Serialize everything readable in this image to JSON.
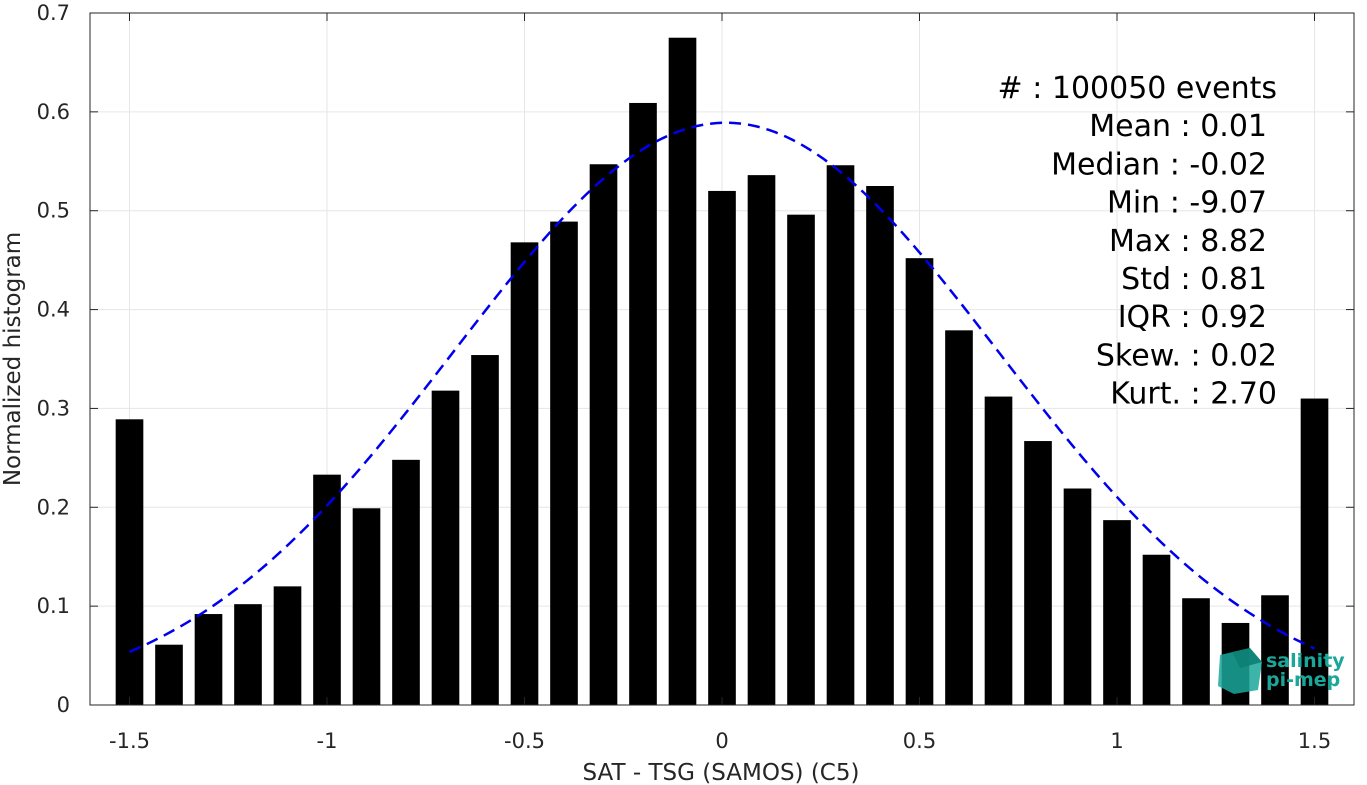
{
  "chart_data": {
    "type": "bar",
    "x": [
      -1.5,
      -1.4,
      -1.3,
      -1.2,
      -1.1,
      -1.0,
      -0.9,
      -0.8,
      -0.7,
      -0.6,
      -0.5,
      -0.4,
      -0.3,
      -0.2,
      -0.1,
      0.0,
      0.1,
      0.2,
      0.3,
      0.4,
      0.5,
      0.6,
      0.7,
      0.8,
      0.9,
      1.0,
      1.1,
      1.2,
      1.3,
      1.4,
      1.5
    ],
    "values": [
      0.289,
      0.061,
      0.092,
      0.102,
      0.12,
      0.233,
      0.199,
      0.248,
      0.318,
      0.354,
      0.468,
      0.489,
      0.547,
      0.609,
      0.675,
      0.52,
      0.536,
      0.496,
      0.546,
      0.525,
      0.452,
      0.379,
      0.312,
      0.267,
      0.219,
      0.187,
      0.152,
      0.108,
      0.083,
      0.111,
      0.31
    ],
    "fit_curve": {
      "mean": 0.01,
      "std": 0.69,
      "peak": 0.589,
      "x_range": [
        -1.5,
        1.5
      ],
      "style": "dashed",
      "color": "#0000ee"
    },
    "xlabel": "SAT - TSG (SAMOS) (C5)",
    "ylabel": "Normalized histogram",
    "xlim": [
      -1.6,
      1.6
    ],
    "ylim": [
      0,
      0.7
    ],
    "xticks": [
      -1.5,
      -1,
      -0.5,
      0,
      0.5,
      1,
      1.5
    ],
    "xtick_labels": [
      "-1.5",
      "-1",
      "-0.5",
      "0",
      "0.5",
      "1",
      "1.5"
    ],
    "yticks": [
      0,
      0.1,
      0.2,
      0.3,
      0.4,
      0.5,
      0.6,
      0.7
    ],
    "ytick_labels": [
      "0",
      "0.1",
      "0.2",
      "0.3",
      "0.4",
      "0.5",
      "0.6",
      "0.7"
    ],
    "grid": true,
    "bar_color": "#000000",
    "annotations": [
      "#   : 100050 events",
      "Mean : 0.01",
      "Median : -0.02",
      "Min : -9.07",
      "Max : 8.82",
      "Std : 0.81",
      "IQR : 0.92",
      "Skew. : 0.02",
      "Kurt. : 2.70"
    ]
  },
  "logo": {
    "line1": "salinity",
    "line2": "pi-mep",
    "color": "#1aa79a"
  }
}
